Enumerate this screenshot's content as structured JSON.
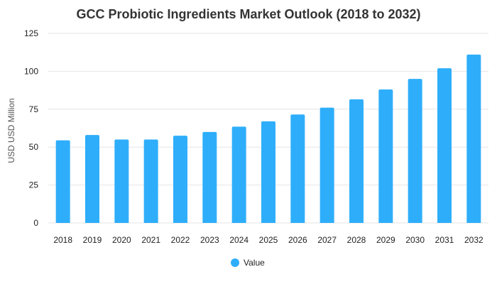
{
  "chart_data": {
    "type": "bar",
    "title": "GCC Probiotic Ingredients Market Outlook (2018 to 2032)",
    "ylabel": "USD USD Million",
    "xlabel": "",
    "categories": [
      "2018",
      "2019",
      "2020",
      "2021",
      "2022",
      "2023",
      "2024",
      "2025",
      "2026",
      "2027",
      "2028",
      "2029",
      "2030",
      "2031",
      "2032"
    ],
    "series": [
      {
        "name": "Value",
        "values": [
          54.5,
          58,
          55,
          55,
          57.5,
          60,
          63.5,
          67,
          71.5,
          76,
          81.5,
          88,
          95,
          102,
          111
        ],
        "color": "#2eaefa"
      }
    ],
    "ylim": [
      0,
      125
    ],
    "yticks": [
      0,
      25,
      50,
      75,
      100,
      125
    ],
    "grid": true,
    "legend_position": "bottom-center"
  }
}
